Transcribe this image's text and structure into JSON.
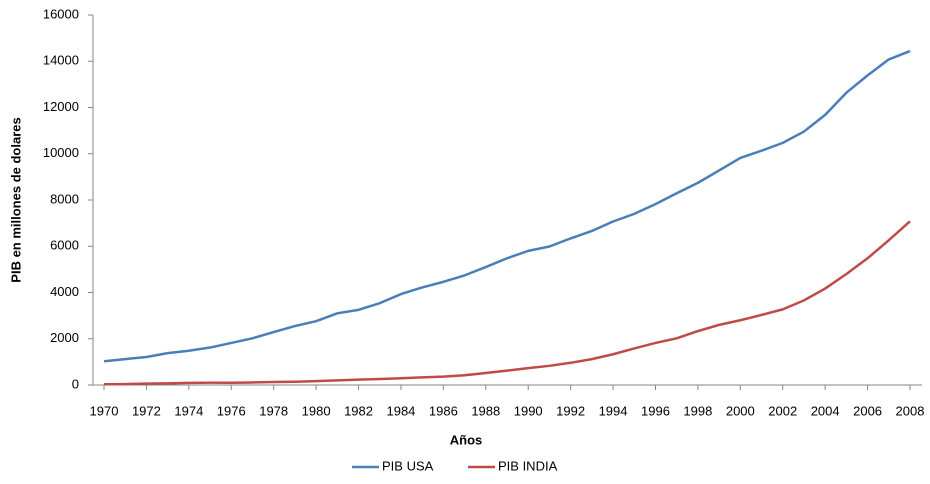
{
  "chart_data": {
    "type": "line",
    "x_label": "Años",
    "y_label": "PIB en millones de dolares",
    "x": [
      1970,
      1971,
      1972,
      1973,
      1974,
      1975,
      1976,
      1977,
      1978,
      1979,
      1980,
      1981,
      1982,
      1983,
      1984,
      1985,
      1986,
      1987,
      1988,
      1989,
      1990,
      1991,
      1992,
      1993,
      1994,
      1995,
      1996,
      1997,
      1998,
      1999,
      2000,
      2001,
      2002,
      2003,
      2004,
      2005,
      2006,
      2007,
      2008
    ],
    "series": [
      {
        "name": "PIB USA",
        "color": "#4a7ebb",
        "values": [
          1025,
          1120,
          1210,
          1380,
          1480,
          1620,
          1820,
          2020,
          2290,
          2550,
          2760,
          3100,
          3250,
          3540,
          3930,
          4220,
          4460,
          4740,
          5100,
          5480,
          5800,
          5990,
          6340,
          6660,
          7070,
          7400,
          7820,
          8290,
          8740,
          9280,
          9820,
          10130,
          10470,
          10960,
          11680,
          12640,
          13390,
          14080,
          14440
        ]
      },
      {
        "name": "PIB INDIA",
        "color": "#be4b48",
        "values": [
          30,
          40,
          60,
          70,
          90,
          100,
          100,
          110,
          130,
          140,
          170,
          200,
          230,
          260,
          290,
          330,
          360,
          420,
          520,
          620,
          730,
          830,
          960,
          1120,
          1330,
          1580,
          1820,
          2020,
          2330,
          2600,
          2800,
          3030,
          3270,
          3660,
          4170,
          4800,
          5480,
          6260,
          7080
        ]
      }
    ],
    "xlim": [
      1970,
      2008
    ],
    "xticks": [
      1970,
      1972,
      1974,
      1976,
      1978,
      1980,
      1982,
      1984,
      1986,
      1988,
      1990,
      1992,
      1994,
      1996,
      1998,
      2000,
      2002,
      2004,
      2006,
      2008
    ],
    "ylim": [
      0,
      16000
    ],
    "yticks": [
      0,
      2000,
      4000,
      6000,
      8000,
      10000,
      12000,
      14000,
      16000
    ],
    "legend": "bottom"
  }
}
